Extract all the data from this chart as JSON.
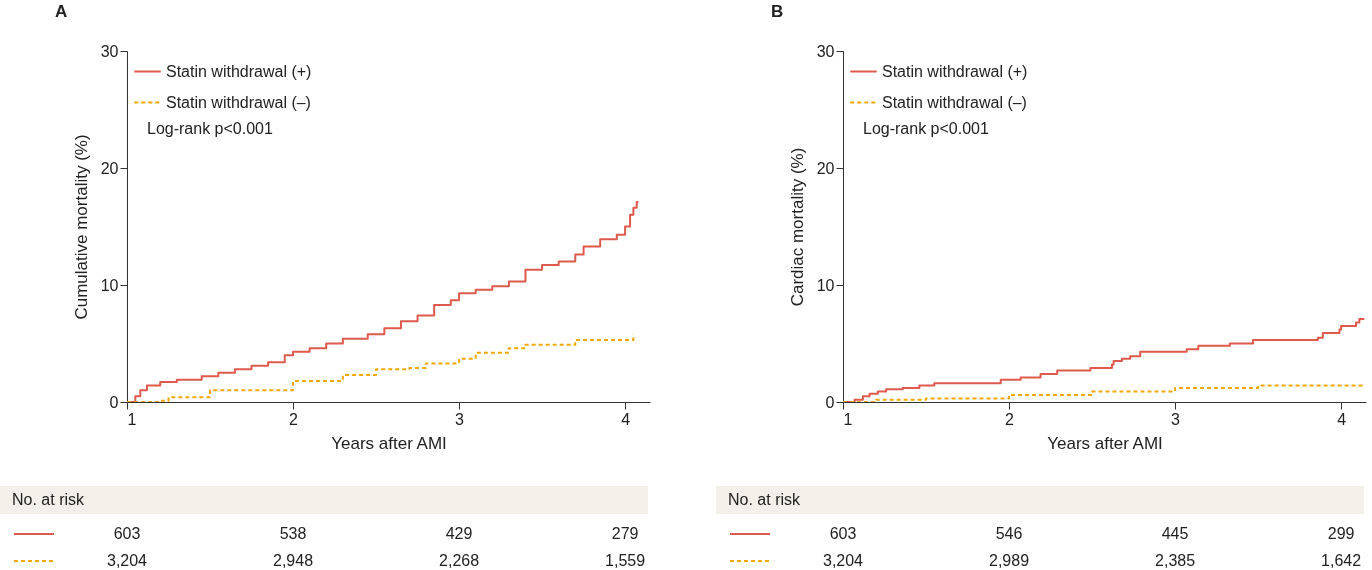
{
  "chart_data": [
    {
      "type": "step",
      "title": "A",
      "xlabel": "Years after AMI",
      "ylabel": "Cumulative mortality (%)",
      "xlim": [
        1,
        4.15
      ],
      "xticks": [
        1,
        2,
        3,
        4
      ],
      "ylim": [
        0,
        30
      ],
      "yticks": [
        0,
        10,
        20,
        30
      ],
      "grid": false,
      "legend": "top left",
      "series": [
        {
          "name": "Statin withdrawal (+)",
          "color": "#dd5a4c",
          "line_style": "solid",
          "x": [
            1.0,
            1.05,
            1.08,
            1.12,
            1.2,
            1.3,
            1.45,
            1.55,
            1.65,
            1.75,
            1.85,
            1.95,
            2.0,
            2.1,
            2.2,
            2.3,
            2.45,
            2.55,
            2.65,
            2.75,
            2.85,
            2.95,
            3.0,
            3.1,
            3.2,
            3.3,
            3.4,
            3.5,
            3.6,
            3.7,
            3.75,
            3.85,
            3.95,
            4.0,
            4.03,
            4.05,
            4.07,
            4.08
          ],
          "values": [
            0,
            0.5,
            1.0,
            1.4,
            1.7,
            1.9,
            2.2,
            2.5,
            2.8,
            3.1,
            3.4,
            4.0,
            4.3,
            4.6,
            5.0,
            5.4,
            5.8,
            6.3,
            6.9,
            7.4,
            8.3,
            8.7,
            9.3,
            9.6,
            9.9,
            10.3,
            11.3,
            11.7,
            12.0,
            12.6,
            13.3,
            13.9,
            14.3,
            15.0,
            16.0,
            16.6,
            17.1,
            17.1
          ]
        },
        {
          "name": "Statin withdrawal (–)",
          "color": "#f0a800",
          "line_style": "dashed",
          "x": [
            1.0,
            1.2,
            1.25,
            1.5,
            2.0,
            2.3,
            2.5,
            2.7,
            2.8,
            3.0,
            3.1,
            3.3,
            3.4,
            3.7,
            4.05
          ],
          "values": [
            0,
            0.1,
            0.4,
            1.0,
            1.8,
            2.3,
            2.8,
            2.9,
            3.3,
            3.7,
            4.2,
            4.6,
            4.9,
            5.3,
            5.8
          ]
        }
      ],
      "annotations": [
        "Log-rank p<0.001",
        "No. at risk",
        "603",
        "538",
        "429",
        "279",
        "3,204",
        "2,948",
        "2,268",
        "1,559"
      ]
    },
    {
      "type": "step",
      "title": "B",
      "xlabel": "Years after AMI",
      "ylabel": "Cardiac mortality (%)",
      "xlim": [
        1,
        4.15
      ],
      "xticks": [
        1,
        2,
        3,
        4
      ],
      "ylim": [
        0,
        30
      ],
      "yticks": [
        0,
        10,
        20,
        30
      ],
      "grid": false,
      "legend": "top left",
      "series": [
        {
          "name": "Statin withdrawal (+)",
          "color": "#dd5a4c",
          "line_style": "solid",
          "x": [
            1.0,
            1.07,
            1.12,
            1.16,
            1.21,
            1.26,
            1.36,
            1.46,
            1.55,
            1.95,
            2.07,
            2.19,
            2.29,
            2.49,
            2.62,
            2.63,
            2.68,
            2.73,
            2.79,
            3.07,
            3.14,
            3.33,
            3.47,
            3.86,
            3.89,
            3.99,
            4.0,
            4.09,
            4.11,
            4.14
          ],
          "values": [
            0,
            0.2,
            0.5,
            0.7,
            0.9,
            1.1,
            1.2,
            1.4,
            1.6,
            1.9,
            2.1,
            2.4,
            2.7,
            2.9,
            3.2,
            3.5,
            3.7,
            3.9,
            4.3,
            4.5,
            4.8,
            5.0,
            5.3,
            5.5,
            5.9,
            6.2,
            6.5,
            6.8,
            7.1,
            7.1
          ]
        },
        {
          "name": "Statin withdrawal (–)",
          "color": "#f0a800",
          "line_style": "dashed",
          "x": [
            1.0,
            1.2,
            1.5,
            2.0,
            2.5,
            3.0,
            3.5,
            4.13
          ],
          "values": [
            0,
            0.2,
            0.3,
            0.6,
            0.9,
            1.2,
            1.4,
            1.6
          ]
        }
      ],
      "annotations": [
        "Log-rank p<0.001",
        "No. at risk",
        "603",
        "546",
        "445",
        "299",
        "3,204",
        "2,989",
        "2,385",
        "1,642"
      ]
    }
  ]
}
